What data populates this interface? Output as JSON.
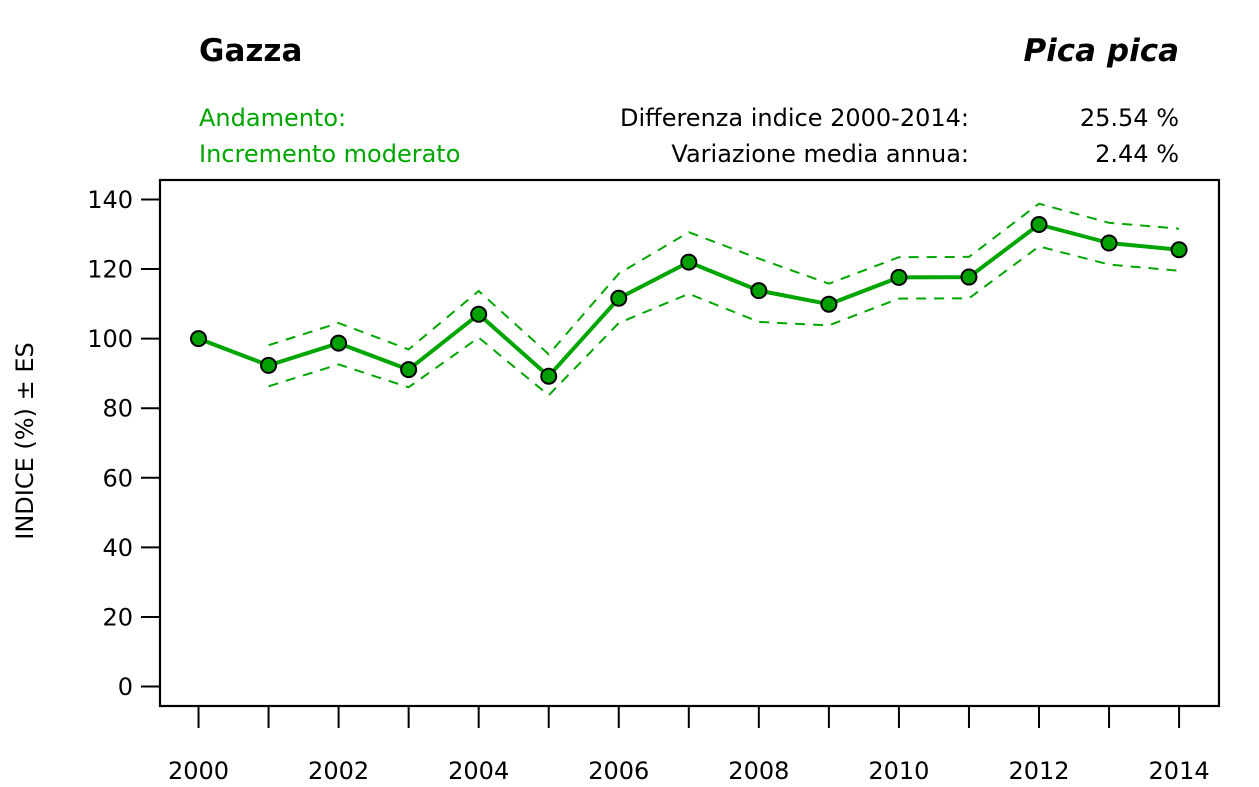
{
  "header": {
    "common_name": "Gazza",
    "scientific_name": "Pica pica",
    "trend_label": "Andamento:",
    "trend_value": "Incremento moderato",
    "diff_label": "Differenza indice 2000-2014:",
    "diff_value": "25.54 %",
    "variation_label": "Variazione media annua:",
    "variation_value": "2.44 %"
  },
  "colors": {
    "series": "#00a600",
    "marker_fill": "#00a000",
    "marker_stroke": "#000000",
    "trend_text": "#00a600"
  },
  "chart_data": {
    "type": "line",
    "title": "Gazza — Pica pica",
    "xlabel": "",
    "ylabel": "INDICE (%) ± ES",
    "x": [
      2000,
      2001,
      2002,
      2003,
      2004,
      2005,
      2006,
      2007,
      2008,
      2009,
      2010,
      2011,
      2012,
      2013,
      2014
    ],
    "xlim": [
      1999.45,
      2014.57
    ],
    "ylim": [
      -5.6,
      145.6
    ],
    "x_ticks": [
      2000,
      2001,
      2002,
      2003,
      2004,
      2005,
      2006,
      2007,
      2008,
      2009,
      2010,
      2011,
      2012,
      2013,
      2014
    ],
    "x_tick_labels": [
      "2000",
      "",
      "2002",
      "",
      "2004",
      "",
      "2006",
      "",
      "2008",
      "",
      "2010",
      "",
      "2012",
      "",
      "2014"
    ],
    "y_ticks": [
      0,
      20,
      40,
      60,
      80,
      100,
      120,
      140
    ],
    "y_tick_labels": [
      "0",
      "20",
      "40",
      "60",
      "80",
      "100",
      "120",
      "140"
    ],
    "grid": false,
    "legend": "none",
    "series": [
      {
        "name": "Indice",
        "style": "solid-with-markers",
        "values": [
          100,
          92.3,
          98.7,
          91.1,
          107.0,
          89.2,
          111.6,
          122.0,
          113.8,
          109.9,
          117.6,
          117.7,
          132.8,
          127.5,
          125.54
        ]
      },
      {
        "name": "Indice + ES",
        "style": "dashed",
        "values": [
          null,
          98.1,
          104.5,
          96.9,
          113.7,
          95.5,
          118.7,
          130.6,
          123.0,
          115.8,
          123.4,
          123.5,
          138.8,
          133.3,
          131.6
        ]
      },
      {
        "name": "Indice - ES",
        "style": "dashed",
        "values": [
          null,
          86.3,
          92.6,
          86.0,
          100.3,
          83.7,
          104.5,
          112.9,
          104.8,
          103.8,
          111.5,
          111.6,
          126.5,
          121.3,
          119.5
        ]
      }
    ]
  }
}
